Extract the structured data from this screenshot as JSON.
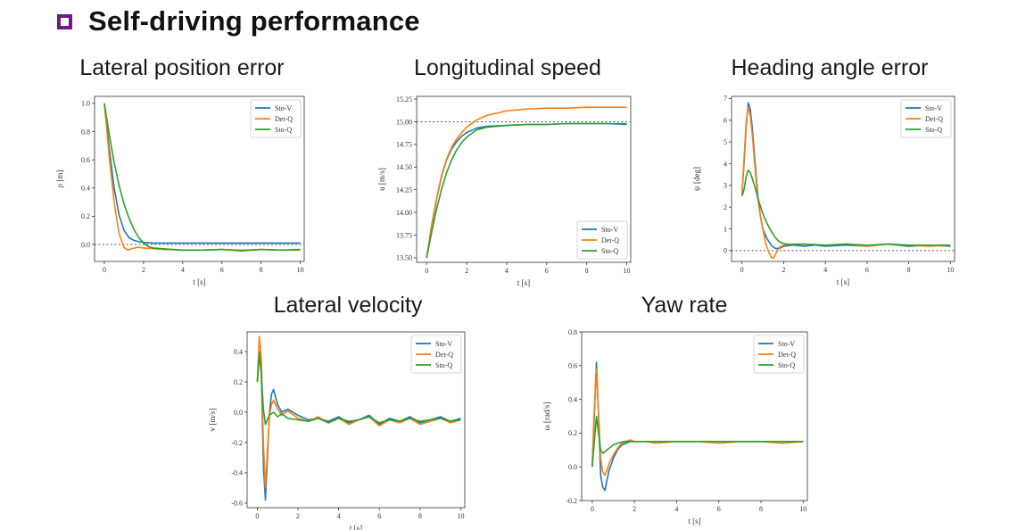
{
  "slide": {
    "title": "Self-driving performance",
    "accent_color": "#6d1a7e"
  },
  "colors": {
    "Sto-V": "#1f77b4",
    "Det-Q": "#ff7f0e",
    "Sto-Q": "#2ca02c",
    "reference": "#555555"
  },
  "chart_data": [
    {
      "id": "lateral-position",
      "type": "line",
      "title": "Lateral position error",
      "xlabel": "t [s]",
      "ylabel": "ρ [m]",
      "xlim": [
        -0.5,
        10.2
      ],
      "ylim": [
        -0.12,
        1.05
      ],
      "xticks": [
        0,
        2,
        4,
        6,
        8,
        10
      ],
      "yticks": [
        0.0,
        0.2,
        0.4,
        0.6,
        0.8,
        1.0
      ],
      "ytick_labels": [
        "0.0",
        "0.2",
        "0.4",
        "0.6",
        "0.8",
        "1.0"
      ],
      "reference": 0.0,
      "legend": "top-right",
      "series": [
        {
          "name": "Sto-V",
          "x": [
            0,
            0.25,
            0.5,
            0.75,
            1,
            1.25,
            1.5,
            1.75,
            2,
            2.5,
            3,
            4,
            5,
            6,
            7,
            8,
            9,
            10
          ],
          "y": [
            1.0,
            0.68,
            0.4,
            0.21,
            0.1,
            0.05,
            0.03,
            0.02,
            0.015,
            0.01,
            0.01,
            0.01,
            0.01,
            0.01,
            0.01,
            0.01,
            0.01,
            0.01
          ]
        },
        {
          "name": "Det-Q",
          "x": [
            0,
            0.25,
            0.5,
            0.75,
            1,
            1.2,
            1.4,
            1.7,
            2,
            2.5,
            3,
            4,
            5,
            6,
            7,
            8,
            9,
            10
          ],
          "y": [
            1.0,
            0.62,
            0.3,
            0.08,
            -0.02,
            -0.04,
            -0.03,
            -0.02,
            -0.025,
            -0.03,
            -0.035,
            -0.04,
            -0.04,
            -0.035,
            -0.04,
            -0.035,
            -0.04,
            -0.04
          ]
        },
        {
          "name": "Sto-Q",
          "x": [
            0,
            0.25,
            0.5,
            0.75,
            1,
            1.25,
            1.5,
            1.75,
            2,
            2.25,
            2.5,
            3,
            4,
            5,
            6,
            7,
            8,
            9,
            10
          ],
          "y": [
            1.0,
            0.78,
            0.58,
            0.42,
            0.29,
            0.19,
            0.11,
            0.05,
            0.01,
            -0.015,
            -0.025,
            -0.03,
            -0.04,
            -0.04,
            -0.035,
            -0.045,
            -0.035,
            -0.04,
            -0.035
          ]
        }
      ]
    },
    {
      "id": "longitudinal-speed",
      "type": "line",
      "title": "Longitudinal speed",
      "xlabel": "t [s]",
      "ylabel": "u [m/s]",
      "xlim": [
        -0.5,
        10.2
      ],
      "ylim": [
        13.45,
        15.28
      ],
      "xticks": [
        0,
        2,
        4,
        6,
        8,
        10
      ],
      "yticks": [
        13.5,
        13.75,
        14.0,
        14.25,
        14.5,
        14.75,
        15.0,
        15.25
      ],
      "ytick_labels": [
        "13.50",
        "13.75",
        "14.00",
        "14.25",
        "14.50",
        "14.75",
        "15.00",
        "15.25"
      ],
      "reference": 15.0,
      "legend": "bottom-right",
      "series": [
        {
          "name": "Sto-V",
          "x": [
            0,
            0.25,
            0.5,
            0.75,
            1,
            1.25,
            1.5,
            1.75,
            2,
            2.5,
            3,
            4,
            5,
            6,
            7,
            8,
            9,
            10
          ],
          "y": [
            13.5,
            13.85,
            14.15,
            14.4,
            14.58,
            14.7,
            14.78,
            14.84,
            14.88,
            14.93,
            14.95,
            14.96,
            14.97,
            14.97,
            14.98,
            14.98,
            14.98,
            14.97
          ]
        },
        {
          "name": "Det-Q",
          "x": [
            0,
            0.25,
            0.5,
            0.75,
            1,
            1.25,
            1.5,
            1.75,
            2,
            2.5,
            3,
            4,
            5,
            6,
            7,
            8,
            9,
            10
          ],
          "y": [
            13.5,
            13.86,
            14.16,
            14.41,
            14.59,
            14.72,
            14.81,
            14.88,
            14.94,
            15.02,
            15.07,
            15.12,
            15.14,
            15.15,
            15.15,
            15.16,
            15.16,
            15.16
          ]
        },
        {
          "name": "Sto-Q",
          "x": [
            0,
            0.25,
            0.5,
            0.75,
            1,
            1.25,
            1.5,
            1.75,
            2,
            2.5,
            3,
            4,
            5,
            6,
            7,
            8,
            9,
            10
          ],
          "y": [
            13.5,
            13.78,
            14.04,
            14.26,
            14.44,
            14.58,
            14.69,
            14.77,
            14.83,
            14.91,
            14.94,
            14.96,
            14.97,
            14.97,
            14.98,
            14.98,
            14.98,
            14.98
          ]
        }
      ]
    },
    {
      "id": "heading-angle",
      "type": "line",
      "title": "Heading angle error",
      "xlabel": "t [s]",
      "ylabel": "ψ [deg]",
      "xlim": [
        -0.5,
        10.2
      ],
      "ylim": [
        -0.5,
        7.1
      ],
      "xticks": [
        0,
        2,
        4,
        6,
        8,
        10
      ],
      "yticks": [
        0,
        1,
        2,
        3,
        4,
        5,
        6,
        7
      ],
      "ytick_labels": [
        "0",
        "1",
        "2",
        "3",
        "4",
        "5",
        "6",
        "7"
      ],
      "reference": 0,
      "legend": "top-right",
      "series": [
        {
          "name": "Sto-V",
          "x": [
            0,
            0.1,
            0.2,
            0.3,
            0.4,
            0.5,
            0.6,
            0.7,
            0.8,
            0.9,
            1.0,
            1.2,
            1.4,
            1.6,
            1.8,
            2.0,
            2.5,
            3,
            3.5,
            4,
            5,
            6,
            7,
            8,
            9,
            10
          ],
          "y": [
            2.6,
            4.0,
            5.7,
            6.8,
            6.5,
            5.6,
            4.4,
            3.2,
            2.2,
            1.5,
            1.0,
            0.55,
            0.25,
            0.1,
            0.1,
            0.2,
            0.25,
            0.2,
            0.25,
            0.2,
            0.25,
            0.2,
            0.3,
            0.2,
            0.25,
            0.2
          ]
        },
        {
          "name": "Det-Q",
          "x": [
            0,
            0.1,
            0.2,
            0.3,
            0.4,
            0.5,
            0.6,
            0.7,
            0.8,
            0.9,
            1.0,
            1.1,
            1.2,
            1.3,
            1.4,
            1.5,
            1.6,
            1.7,
            1.8,
            2.0,
            2.5,
            3,
            4,
            5,
            6,
            7,
            8,
            9,
            10
          ],
          "y": [
            2.6,
            4.2,
            5.9,
            6.6,
            6.2,
            5.3,
            4.1,
            3.0,
            2.1,
            1.5,
            1.0,
            0.5,
            0.15,
            -0.1,
            -0.3,
            -0.35,
            -0.2,
            0.0,
            0.15,
            0.25,
            0.3,
            0.3,
            0.25,
            0.3,
            0.2,
            0.3,
            0.25,
            0.2,
            0.25
          ]
        },
        {
          "name": "Sto-Q",
          "x": [
            0,
            0.1,
            0.2,
            0.3,
            0.4,
            0.5,
            0.6,
            0.8,
            1.0,
            1.2,
            1.4,
            1.6,
            1.8,
            2.0,
            2.2,
            2.5,
            3,
            4,
            5,
            6,
            7,
            8,
            9,
            10
          ],
          "y": [
            2.5,
            2.8,
            3.4,
            3.7,
            3.6,
            3.3,
            3.0,
            2.3,
            1.7,
            1.25,
            0.9,
            0.6,
            0.4,
            0.32,
            0.3,
            0.28,
            0.3,
            0.25,
            0.3,
            0.25,
            0.3,
            0.25,
            0.25,
            0.25
          ]
        }
      ]
    },
    {
      "id": "lateral-velocity",
      "type": "line",
      "title": "Lateral velocity",
      "xlabel": "t [s]",
      "ylabel": "v [m/s]",
      "xlim": [
        -0.5,
        10.2
      ],
      "ylim": [
        -0.63,
        0.53
      ],
      "xticks": [
        0,
        2,
        4,
        6,
        8,
        10
      ],
      "yticks": [
        -0.6,
        -0.4,
        -0.2,
        0.0,
        0.2,
        0.4
      ],
      "ytick_labels": [
        "-0.6",
        "-0.4",
        "-0.2",
        "0.0",
        "0.2",
        "0.4"
      ],
      "legend": "top-right",
      "series": [
        {
          "name": "Sto-V",
          "x": [
            0,
            0.1,
            0.2,
            0.3,
            0.4,
            0.5,
            0.6,
            0.7,
            0.8,
            1.0,
            1.2,
            1.5,
            2,
            2.5,
            3,
            3.5,
            4,
            4.5,
            5,
            5.5,
            6,
            6.5,
            7,
            7.5,
            8,
            8.5,
            9,
            9.5,
            10
          ],
          "y": [
            0.2,
            0.4,
            0.25,
            -0.35,
            -0.58,
            -0.3,
            0.0,
            0.12,
            0.15,
            0.05,
            0.0,
            0.02,
            -0.02,
            -0.05,
            -0.04,
            -0.06,
            -0.03,
            -0.07,
            -0.05,
            -0.02,
            -0.08,
            -0.04,
            -0.06,
            -0.03,
            -0.07,
            -0.05,
            -0.03,
            -0.06,
            -0.04
          ]
        },
        {
          "name": "Det-Q",
          "x": [
            0,
            0.1,
            0.2,
            0.3,
            0.4,
            0.5,
            0.6,
            0.7,
            0.8,
            1.0,
            1.2,
            1.5,
            2,
            2.5,
            3,
            3.5,
            4,
            4.5,
            5,
            5.5,
            6,
            6.5,
            7,
            7.5,
            8,
            8.5,
            9,
            9.5,
            10
          ],
          "y": [
            0.2,
            0.5,
            0.35,
            -0.2,
            -0.5,
            -0.25,
            -0.02,
            0.05,
            0.08,
            0.02,
            -0.02,
            0.01,
            -0.04,
            -0.06,
            -0.03,
            -0.07,
            -0.04,
            -0.08,
            -0.05,
            -0.03,
            -0.09,
            -0.05,
            -0.07,
            -0.04,
            -0.08,
            -0.06,
            -0.04,
            -0.07,
            -0.05
          ]
        },
        {
          "name": "Sto-Q",
          "x": [
            0,
            0.1,
            0.2,
            0.3,
            0.4,
            0.5,
            0.6,
            0.8,
            1.0,
            1.2,
            1.5,
            2,
            2.5,
            3,
            3.5,
            4,
            4.5,
            5,
            5.5,
            6,
            6.5,
            7,
            7.5,
            8,
            8.5,
            9,
            9.5,
            10
          ],
          "y": [
            0.2,
            0.38,
            0.25,
            0.02,
            -0.08,
            -0.05,
            -0.02,
            0.0,
            -0.03,
            -0.01,
            -0.04,
            -0.05,
            -0.06,
            -0.04,
            -0.07,
            -0.04,
            -0.06,
            -0.05,
            -0.03,
            -0.07,
            -0.05,
            -0.06,
            -0.04,
            -0.06,
            -0.05,
            -0.04,
            -0.06,
            -0.05
          ]
        }
      ]
    },
    {
      "id": "yaw-rate",
      "type": "line",
      "title": "Yaw rate",
      "xlabel": "t [s]",
      "ylabel": "ω [rad/s]",
      "xlim": [
        -0.5,
        10.2
      ],
      "ylim": [
        -0.2,
        0.8
      ],
      "xticks": [
        0,
        2,
        4,
        6,
        8,
        10
      ],
      "yticks": [
        -0.2,
        0.0,
        0.2,
        0.4,
        0.6,
        0.8
      ],
      "ytick_labels": [
        "-0.2",
        "0.0",
        "0.2",
        "0.4",
        "0.6",
        "0.8"
      ],
      "legend": "top-right",
      "series": [
        {
          "name": "Sto-V",
          "x": [
            0,
            0.1,
            0.2,
            0.3,
            0.4,
            0.5,
            0.6,
            0.7,
            0.8,
            1.0,
            1.2,
            1.4,
            1.6,
            1.8,
            2.0,
            2.5,
            3,
            4,
            5,
            6,
            7,
            8,
            9,
            10
          ],
          "y": [
            0.0,
            0.3,
            0.62,
            0.3,
            -0.05,
            -0.12,
            -0.14,
            -0.08,
            -0.02,
            0.05,
            0.1,
            0.13,
            0.14,
            0.15,
            0.15,
            0.15,
            0.15,
            0.15,
            0.15,
            0.15,
            0.15,
            0.15,
            0.15,
            0.15
          ]
        },
        {
          "name": "Det-Q",
          "x": [
            0,
            0.1,
            0.2,
            0.3,
            0.4,
            0.5,
            0.6,
            0.7,
            0.8,
            1.0,
            1.2,
            1.4,
            1.6,
            1.8,
            2.0,
            2.5,
            3,
            4,
            5,
            6,
            7,
            8,
            9,
            10
          ],
          "y": [
            0.0,
            0.35,
            0.58,
            0.32,
            0.05,
            -0.03,
            -0.05,
            -0.02,
            0.02,
            0.07,
            0.11,
            0.14,
            0.15,
            0.16,
            0.15,
            0.15,
            0.14,
            0.15,
            0.15,
            0.14,
            0.15,
            0.15,
            0.14,
            0.15
          ]
        },
        {
          "name": "Sto-Q",
          "x": [
            0,
            0.1,
            0.2,
            0.3,
            0.4,
            0.5,
            0.6,
            0.8,
            1.0,
            1.2,
            1.5,
            2.0,
            2.5,
            3,
            4,
            5,
            6,
            7,
            8,
            9,
            10
          ],
          "y": [
            0.0,
            0.15,
            0.3,
            0.2,
            0.1,
            0.08,
            0.09,
            0.11,
            0.13,
            0.14,
            0.15,
            0.15,
            0.15,
            0.15,
            0.15,
            0.15,
            0.15,
            0.15,
            0.15,
            0.15,
            0.15
          ]
        }
      ]
    }
  ]
}
